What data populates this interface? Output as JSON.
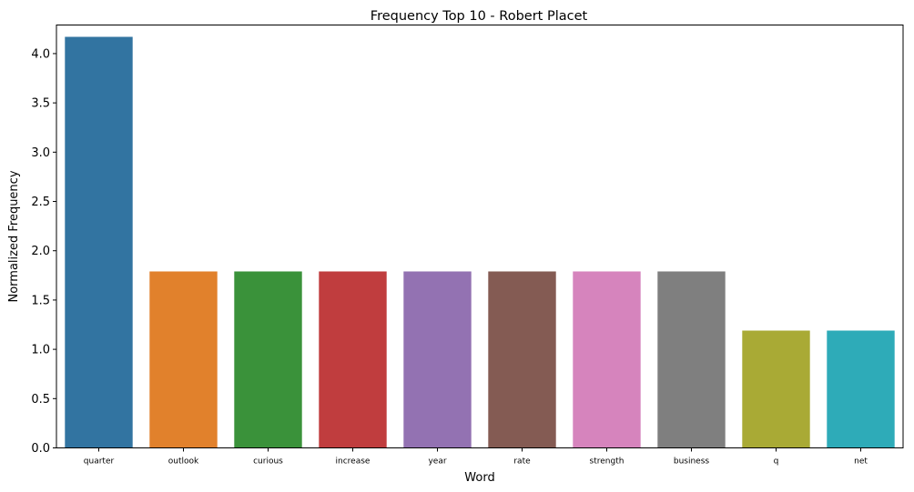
{
  "chart_data": {
    "type": "bar",
    "title": "Frequency Top 10 - Robert Placet",
    "xlabel": "Word",
    "ylabel": "Normalized Frequency",
    "categories": [
      "quarter",
      "outlook",
      "curious",
      "increase",
      "year",
      "rate",
      "strength",
      "business",
      "q",
      "net"
    ],
    "values": [
      4.17,
      1.79,
      1.79,
      1.79,
      1.79,
      1.79,
      1.79,
      1.79,
      1.19,
      1.19
    ],
    "colors": [
      "#3274a1",
      "#e1812c",
      "#3a923a",
      "#c03d3e",
      "#9372b2",
      "#845b53",
      "#d684bd",
      "#7f7f7f",
      "#a9aa35",
      "#2eabb8"
    ],
    "ylim": [
      0,
      4.29
    ],
    "yticks": [
      0.0,
      0.5,
      1.0,
      1.5,
      2.0,
      2.5,
      3.0,
      3.5,
      4.0
    ],
    "ytick_labels": [
      "0.0",
      "0.5",
      "1.0",
      "1.5",
      "2.0",
      "2.5",
      "3.0",
      "3.5",
      "4.0"
    ],
    "grid": false,
    "legend": "none"
  }
}
